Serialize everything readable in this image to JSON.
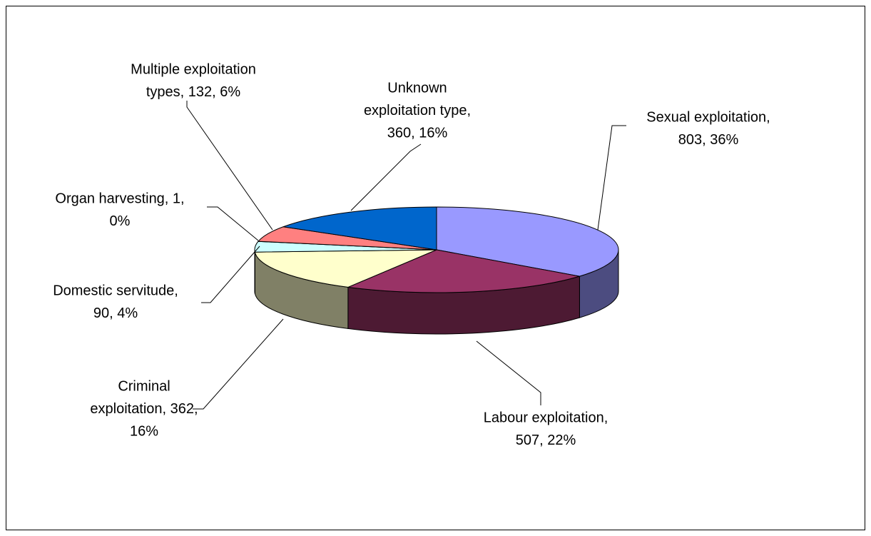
{
  "chart_data": {
    "type": "pie",
    "values": [
      803,
      507,
      362,
      90,
      1,
      132,
      360
    ],
    "value_labels": [
      [
        "Sexual exploitation,",
        "803, 36%"
      ],
      [
        "Labour exploitation,",
        "507, 22%"
      ],
      [
        "Criminal",
        "exploitation, 362,",
        "16%"
      ],
      [
        "Domestic servitude,",
        "90, 4%"
      ],
      [
        "Organ harvesting, 1,",
        "0%"
      ],
      [
        "Multiple exploitation",
        "types, 132, 6%"
      ],
      [
        "Unknown",
        "exploitation type,",
        "360, 16%"
      ]
    ],
    "colors": [
      "#9999ff",
      "#993366",
      "#ffffcc",
      "#ccffff",
      "#ffffff",
      "#ff8080",
      "#0066cc"
    ],
    "side_colors": [
      "#4c4c80",
      "#4d1a33",
      "#808066",
      "#668080",
      "#808080",
      "#804040",
      "#003366"
    ]
  }
}
